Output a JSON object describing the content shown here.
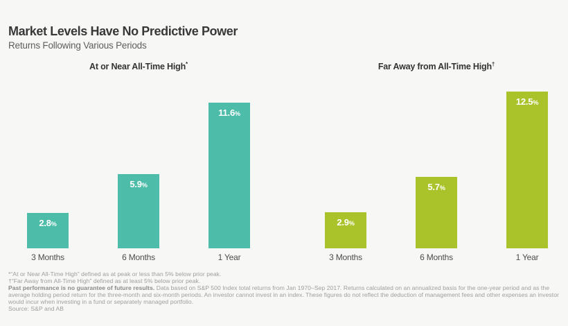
{
  "header": {
    "title": "Market Levels Have No Predictive Power",
    "subtitle": "Returns Following Various Periods"
  },
  "panels": [
    {
      "title": "At or Near All-Time High",
      "title_marker": "*"
    },
    {
      "title": "Far Away from All-Time High",
      "title_marker": "†"
    }
  ],
  "chart_data": {
    "type": "bar",
    "title": "Market Levels Have No Predictive Power",
    "subtitle": "Returns Following Various Periods",
    "categories": [
      "3 Months",
      "6 Months",
      "1 Year"
    ],
    "series": [
      {
        "name": "At or Near All-Time High*",
        "values": [
          2.8,
          5.9,
          11.6
        ],
        "value_labels": [
          "2.8",
          "5.9",
          "11.6"
        ],
        "color": "#4DBCA9"
      },
      {
        "name": "Far Away from All-Time High†",
        "values": [
          2.9,
          5.7,
          12.5
        ],
        "value_labels": [
          "2.9",
          "5.7",
          "12.5"
        ],
        "color": "#ABC32B"
      }
    ],
    "value_suffix": "%",
    "ylim": [
      0,
      13.2
    ],
    "grid": false,
    "axis_lines": false,
    "legend_position": "none",
    "value_label_position": "inside-top",
    "background_color": "#f7f7f6"
  },
  "footnotes": {
    "line1": "*“At or Near All-Time High” defined as at peak or less than 5% below prior peak.",
    "line2": "†“Far Away from All-Time High” defined as at least 5% below prior peak.",
    "bold": "Past performance is no guarantee of future results.",
    "rest": " Data based on S&P 500 Index total returns from Jan 1970–Sep 2017. Returns calculated on an annualized basis for the one-year period and as the average holding period return for the three-month and six-month periods. An investor cannot invest in an index. These figures do not reflect the deduction of management fees and other expenses an investor would incur when investing in a fund or separately managed portfolio.",
    "source": "Source: S&P and AB"
  }
}
